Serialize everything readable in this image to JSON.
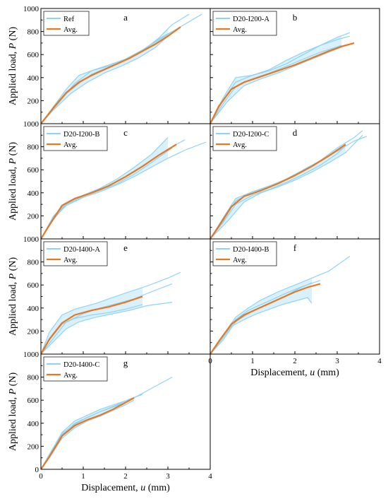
{
  "figure": {
    "y_label_prefix": "Applied load, ",
    "y_label_var": "P",
    "y_label_unit": " (N)",
    "x_label_prefix": "Displacement, ",
    "x_label_var": "u",
    "x_label_unit": " (mm)"
  },
  "colors": {
    "individual": "#8fd3f5",
    "band": "#d3eefb",
    "average": "#e87722",
    "axis": "#000000"
  },
  "chart_data": [
    {
      "type": "line",
      "panel": "a",
      "xlim": [
        0,
        4
      ],
      "ylim": [
        0,
        1000
      ],
      "xticks": [
        0,
        1,
        2,
        3,
        4
      ],
      "yticks": [
        0,
        200,
        400,
        600,
        800,
        1000
      ],
      "legend": [
        "Ref",
        "Avg."
      ],
      "average": {
        "x": [
          0,
          0.3,
          0.6,
          0.9,
          1.2,
          1.5,
          1.8,
          2.1,
          2.4,
          2.7,
          3.0,
          3.3
        ],
        "y": [
          0,
          140,
          270,
          360,
          420,
          470,
          520,
          570,
          630,
          690,
          760,
          840
        ]
      },
      "tests": [
        {
          "x": [
            0,
            0.3,
            0.6,
            0.9,
            1.2,
            1.6,
            2.0,
            2.4,
            2.8,
            3.1
          ],
          "y": [
            0,
            150,
            300,
            420,
            460,
            510,
            560,
            640,
            740,
            800
          ]
        },
        {
          "x": [
            0,
            0.3,
            0.6,
            0.9,
            1.2,
            1.6,
            2.0,
            2.4,
            2.8,
            3.2,
            3.8
          ],
          "y": [
            0,
            130,
            260,
            350,
            430,
            490,
            560,
            640,
            730,
            820,
            950
          ]
        },
        {
          "x": [
            0,
            0.4,
            0.8,
            1.2,
            1.6,
            2.0,
            2.4,
            2.8,
            3.1,
            3.5
          ],
          "y": [
            0,
            170,
            350,
            460,
            500,
            550,
            630,
            750,
            860,
            950
          ]
        },
        {
          "x": [
            0,
            0.3,
            0.7,
            1.1,
            1.5,
            1.9,
            2.3,
            2.7,
            3.0
          ],
          "y": [
            0,
            120,
            260,
            360,
            440,
            500,
            570,
            660,
            760
          ]
        }
      ]
    },
    {
      "type": "line",
      "panel": "b",
      "xlim": [
        0,
        4
      ],
      "ylim": [
        0,
        1000
      ],
      "xticks": [
        0,
        1,
        2,
        3,
        4
      ],
      "yticks": [
        0,
        200,
        400,
        600,
        800,
        1000
      ],
      "legend": [
        "D20-I200-A",
        "Avg."
      ],
      "average": {
        "x": [
          0,
          0.2,
          0.5,
          0.8,
          1.2,
          1.6,
          2.0,
          2.4,
          2.8,
          3.1,
          3.4
        ],
        "y": [
          0,
          150,
          300,
          360,
          410,
          460,
          510,
          570,
          630,
          670,
          700
        ]
      },
      "tests": [
        {
          "x": [
            0,
            0.3,
            0.6,
            1.0,
            1.4,
            1.8,
            2.2,
            2.6,
            3.0,
            3.3
          ],
          "y": [
            0,
            200,
            360,
            420,
            460,
            520,
            600,
            680,
            750,
            790
          ]
        },
        {
          "x": [
            0,
            0.3,
            0.6,
            1.0,
            1.4,
            1.8,
            2.2,
            2.6,
            3.1
          ],
          "y": [
            0,
            170,
            320,
            390,
            440,
            500,
            560,
            620,
            680
          ]
        },
        {
          "x": [
            0,
            0.3,
            0.6,
            1.0,
            1.4,
            1.8,
            2.2,
            2.6,
            3.0,
            3.3
          ],
          "y": [
            0,
            220,
            400,
            420,
            470,
            550,
            620,
            680,
            730,
            760
          ]
        },
        {
          "x": [
            0,
            0.4,
            0.8,
            1.2,
            1.6,
            2.0,
            2.4,
            2.8,
            3.2
          ],
          "y": [
            0,
            190,
            330,
            390,
            440,
            500,
            560,
            620,
            680
          ]
        }
      ]
    },
    {
      "type": "line",
      "panel": "c",
      "xlim": [
        0,
        4
      ],
      "ylim": [
        0,
        1000
      ],
      "xticks": [
        0,
        1,
        2,
        3,
        4
      ],
      "yticks": [
        0,
        200,
        400,
        600,
        800,
        1000
      ],
      "legend": [
        "D20-I200-B",
        "Avg."
      ],
      "average": {
        "x": [
          0,
          0.2,
          0.5,
          0.8,
          1.2,
          1.6,
          2.0,
          2.4,
          2.8,
          3.2
        ],
        "y": [
          0,
          120,
          290,
          350,
          400,
          460,
          540,
          630,
          730,
          820
        ]
      },
      "tests": [
        {
          "x": [
            0,
            0.3,
            0.6,
            1.0,
            1.4,
            1.8,
            2.2,
            2.6,
            3.0
          ],
          "y": [
            0,
            200,
            310,
            380,
            440,
            520,
            620,
            730,
            880
          ]
        },
        {
          "x": [
            0,
            0.3,
            0.6,
            1.0,
            1.4,
            1.8,
            2.2,
            2.6,
            3.0,
            3.4,
            3.9
          ],
          "y": [
            0,
            180,
            290,
            360,
            410,
            470,
            540,
            620,
            700,
            770,
            840
          ]
        },
        {
          "x": [
            0,
            0.3,
            0.6,
            1.0,
            1.4,
            1.8,
            2.2,
            2.6,
            3.0,
            3.4
          ],
          "y": [
            0,
            190,
            300,
            370,
            430,
            500,
            580,
            680,
            780,
            860
          ]
        },
        {
          "x": [
            0,
            0.3,
            0.6,
            1.0,
            1.4,
            1.8,
            2.2,
            2.6,
            3.1
          ],
          "y": [
            0,
            170,
            300,
            370,
            420,
            480,
            560,
            660,
            790
          ]
        }
      ]
    },
    {
      "type": "line",
      "panel": "d",
      "xlim": [
        0,
        4
      ],
      "ylim": [
        0,
        1000
      ],
      "xticks": [
        0,
        1,
        2,
        3,
        4
      ],
      "yticks": [
        0,
        200,
        400,
        600,
        800,
        1000
      ],
      "legend": [
        "D20-I200-C",
        "Avg."
      ],
      "average": {
        "x": [
          0,
          0.2,
          0.5,
          0.8,
          1.2,
          1.6,
          2.0,
          2.4,
          2.8,
          3.2
        ],
        "y": [
          0,
          110,
          280,
          370,
          420,
          480,
          550,
          630,
          720,
          820
        ]
      },
      "tests": [
        {
          "x": [
            0,
            0.3,
            0.6,
            1.0,
            1.4,
            1.8,
            2.2,
            2.6,
            3.0,
            3.4,
            3.7
          ],
          "y": [
            0,
            150,
            330,
            410,
            450,
            520,
            600,
            680,
            760,
            850,
            890
          ]
        },
        {
          "x": [
            0,
            0.3,
            0.6,
            1.0,
            1.4,
            1.8,
            2.2,
            2.6,
            3.0,
            3.4,
            3.6
          ],
          "y": [
            0,
            180,
            350,
            410,
            460,
            520,
            590,
            680,
            790,
            880,
            940
          ]
        },
        {
          "x": [
            0,
            0.3,
            0.6,
            1.0,
            1.4,
            1.8,
            2.2,
            2.6,
            3.0,
            3.2
          ],
          "y": [
            0,
            140,
            300,
            380,
            430,
            490,
            560,
            640,
            740,
            810
          ]
        },
        {
          "x": [
            0,
            0.4,
            0.8,
            1.2,
            1.6,
            2.0,
            2.4,
            2.8,
            3.2,
            3.6
          ],
          "y": [
            0,
            150,
            320,
            400,
            450,
            510,
            580,
            660,
            750,
            900
          ]
        }
      ]
    },
    {
      "type": "line",
      "panel": "e",
      "xlim": [
        0,
        4
      ],
      "ylim": [
        0,
        1000
      ],
      "xticks": [
        0,
        1,
        2,
        3,
        4
      ],
      "yticks": [
        0,
        200,
        400,
        600,
        800,
        1000
      ],
      "legend": [
        "D20-I400-A",
        "Avg."
      ],
      "average": {
        "x": [
          0,
          0.2,
          0.5,
          0.8,
          1.2,
          1.6,
          2.0,
          2.4
        ],
        "y": [
          0,
          130,
          270,
          340,
          380,
          410,
          450,
          500
        ]
      },
      "tests": [
        {
          "x": [
            0,
            0.2,
            0.5,
            0.8,
            1.0,
            1.3,
            1.6,
            2.0,
            2.5,
            3.0,
            3.3
          ],
          "y": [
            0,
            190,
            340,
            390,
            410,
            440,
            480,
            530,
            590,
            660,
            710
          ]
        },
        {
          "x": [
            0,
            0.3,
            0.6,
            0.9,
            1.3,
            1.7,
            2.1,
            2.5,
            3.1
          ],
          "y": [
            0,
            110,
            220,
            280,
            320,
            350,
            380,
            420,
            450
          ]
        },
        {
          "x": [
            0,
            0.3,
            0.6,
            1.0,
            1.4,
            1.8,
            2.2,
            2.6,
            3.1
          ],
          "y": [
            0,
            140,
            280,
            350,
            400,
            440,
            480,
            540,
            610
          ]
        },
        {
          "x": [
            0,
            0.2,
            0.5,
            0.8,
            1.2,
            1.6,
            2.0,
            2.4
          ],
          "y": [
            0,
            120,
            260,
            310,
            340,
            360,
            390,
            430
          ]
        }
      ]
    },
    {
      "type": "line",
      "panel": "f",
      "xlim": [
        0,
        4
      ],
      "ylim": [
        0,
        1000
      ],
      "xticks": [
        0,
        1,
        2,
        3,
        4
      ],
      "yticks": [
        0,
        200,
        400,
        600,
        800,
        1000
      ],
      "legend": [
        "D20-I400-B",
        "Avg."
      ],
      "average": {
        "x": [
          0,
          0.2,
          0.5,
          0.8,
          1.1,
          1.4,
          1.7,
          2.0,
          2.3,
          2.6
        ],
        "y": [
          0,
          110,
          260,
          340,
          390,
          440,
          490,
          540,
          580,
          610
        ]
      },
      "tests": [
        {
          "x": [
            0,
            0.3,
            0.6,
            0.9,
            1.2,
            1.6,
            2.0,
            2.4,
            2.8,
            3.3
          ],
          "y": [
            0,
            160,
            320,
            400,
            470,
            540,
            600,
            660,
            720,
            850
          ]
        },
        {
          "x": [
            0,
            0.2,
            0.5,
            0.8,
            1.1,
            1.4,
            1.7,
            2.0,
            2.3,
            2.4
          ],
          "y": [
            0,
            90,
            240,
            300,
            350,
            390,
            430,
            460,
            490,
            440
          ]
        },
        {
          "x": [
            0,
            0.3,
            0.6,
            0.9,
            1.2,
            1.5,
            1.8,
            2.2,
            2.6
          ],
          "y": [
            0,
            140,
            300,
            380,
            430,
            480,
            530,
            590,
            640
          ]
        },
        {
          "x": [
            0,
            0.3,
            0.6,
            0.9,
            1.2,
            1.5,
            1.8,
            2.1,
            2.4
          ],
          "y": [
            0,
            120,
            280,
            350,
            410,
            460,
            510,
            570,
            620
          ]
        }
      ]
    },
    {
      "type": "line",
      "panel": "g",
      "xlim": [
        0,
        4
      ],
      "ylim": [
        0,
        1000
      ],
      "xticks": [
        0,
        1,
        2,
        3,
        4
      ],
      "yticks": [
        0,
        200,
        400,
        600,
        800,
        1000
      ],
      "legend": [
        "D20-I400-C",
        "Avg."
      ],
      "average": {
        "x": [
          0,
          0.2,
          0.5,
          0.8,
          1.1,
          1.4,
          1.7,
          2.0,
          2.2
        ],
        "y": [
          0,
          110,
          290,
          380,
          430,
          470,
          520,
          580,
          620
        ]
      },
      "tests": [
        {
          "x": [
            0,
            0.2,
            0.5,
            0.8,
            1.1,
            1.4,
            1.8,
            2.2,
            2.6,
            3.1
          ],
          "y": [
            0,
            130,
            320,
            420,
            470,
            520,
            570,
            620,
            700,
            800
          ]
        },
        {
          "x": [
            0,
            0.2,
            0.5,
            0.8,
            1.1,
            1.4,
            1.8,
            2.1,
            2.4
          ],
          "y": [
            0,
            120,
            300,
            400,
            450,
            500,
            560,
            610,
            650
          ]
        },
        {
          "x": [
            0,
            0.2,
            0.5,
            0.8,
            1.1,
            1.4,
            1.7,
            2.0,
            2.2
          ],
          "y": [
            0,
            100,
            270,
            360,
            420,
            460,
            510,
            560,
            600
          ]
        },
        {
          "x": [
            0,
            0.2,
            0.5,
            0.8,
            1.1,
            1.4,
            1.7,
            2.0
          ],
          "y": [
            0,
            120,
            310,
            390,
            450,
            500,
            540,
            580
          ]
        }
      ]
    }
  ]
}
